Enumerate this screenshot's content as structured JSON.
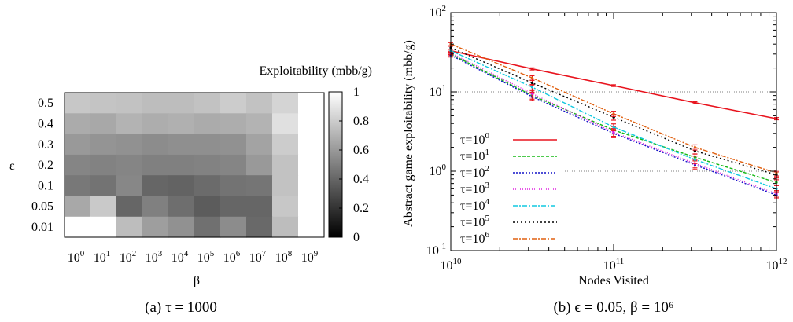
{
  "chart_data": [
    {
      "type": "heatmap",
      "caption": "(a) τ = 1000",
      "xlabel": "β",
      "ylabel": "ε",
      "colorbar_label": "Exploitability (mbb/g)",
      "colorbar_ticks": [
        "0",
        "0.2",
        "0.4",
        "0.6",
        "0.8",
        "1"
      ],
      "colormap": "gray",
      "zlim": [
        0,
        1
      ],
      "x_base": "10",
      "x_exponents": [
        "0",
        "1",
        "2",
        "3",
        "4",
        "5",
        "6",
        "7",
        "8",
        "9"
      ],
      "y_categories": [
        "0.5",
        "0.4",
        "0.3",
        "0.2",
        "0.1",
        "0.05",
        "0.01"
      ],
      "values": [
        [
          0.78,
          0.77,
          0.76,
          0.74,
          0.74,
          0.76,
          0.8,
          0.76,
          0.83,
          1.0
        ],
        [
          0.67,
          0.66,
          0.7,
          0.68,
          0.69,
          0.67,
          0.68,
          0.7,
          0.88,
          1.0
        ],
        [
          0.6,
          0.58,
          0.57,
          0.55,
          0.56,
          0.56,
          0.57,
          0.64,
          0.8,
          1.0
        ],
        [
          0.52,
          0.51,
          0.52,
          0.5,
          0.5,
          0.51,
          0.52,
          0.6,
          0.76,
          1.0
        ],
        [
          0.47,
          0.45,
          0.53,
          0.4,
          0.39,
          0.42,
          0.45,
          0.46,
          0.76,
          1.0
        ],
        [
          0.66,
          0.79,
          0.4,
          0.5,
          0.43,
          0.36,
          0.4,
          0.4,
          0.78,
          1.0
        ],
        [
          1.0,
          1.0,
          0.74,
          0.62,
          0.57,
          0.44,
          0.55,
          0.41,
          0.74,
          1.0
        ]
      ]
    },
    {
      "type": "line",
      "caption": "(b) ϵ = 0.05, β = 10⁶",
      "xlabel": "Nodes Visited",
      "ylabel": "Abstract game exploitability (mbb/g)",
      "xscale": "log",
      "yscale": "log",
      "xlim": [
        10000000000.0,
        1000000000000.0
      ],
      "ylim": [
        0.1,
        100
      ],
      "x_ticks": [
        {
          "base": "10",
          "exp": "10",
          "value": 10000000000.0
        },
        {
          "base": "10",
          "exp": "11",
          "value": 100000000000.0
        },
        {
          "base": "10",
          "exp": "12",
          "value": 1000000000000.0
        }
      ],
      "y_ticks": [
        {
          "base": "10",
          "exp": "-1",
          "value": 0.1
        },
        {
          "base": "10",
          "exp": "0",
          "value": 1
        },
        {
          "base": "10",
          "exp": "1",
          "value": 10
        },
        {
          "base": "10",
          "exp": "2",
          "value": 100
        }
      ],
      "legend_position": "bottom-left",
      "x": [
        10000000000.0,
        31600000000.0,
        100000000000.0,
        316000000000.0,
        1000000000000.0
      ],
      "series": [
        {
          "name_prefix": "τ=10",
          "name_exp": "0",
          "color": "#e8141e",
          "dash": "",
          "values": [
            33,
            19.5,
            12,
            7.3,
            4.6
          ],
          "err": [
            1.5,
            0.6,
            0.3,
            0.2,
            0.15
          ]
        },
        {
          "name_prefix": "τ=10",
          "name_exp": "1",
          "color": "#14b814",
          "dash": "4,2",
          "values": [
            30,
            9,
            3.3,
            1.5,
            0.72
          ],
          "err": [
            1.5,
            0.9,
            0.35,
            0.15,
            0.06
          ]
        },
        {
          "name_prefix": "τ=10",
          "name_exp": "2",
          "color": "#1414c8",
          "dash": "2,2",
          "values": [
            29,
            8.7,
            3.0,
            1.2,
            0.5
          ],
          "err": [
            1.5,
            0.9,
            0.35,
            0.15,
            0.05
          ]
        },
        {
          "name_prefix": "τ=10",
          "name_exp": "3",
          "color": "#e020e0",
          "dash": "1,2",
          "values": [
            31,
            9.5,
            3.1,
            1.25,
            0.52
          ],
          "err": [
            1.5,
            0.9,
            0.35,
            0.15,
            0.05
          ]
        },
        {
          "name_prefix": "τ=10",
          "name_exp": "4",
          "color": "#10c8e0",
          "dash": "6,2,2,2",
          "values": [
            33,
            11.5,
            3.6,
            1.4,
            0.6
          ],
          "err": [
            1.5,
            0.9,
            0.35,
            0.15,
            0.06
          ]
        },
        {
          "name_prefix": "τ=10",
          "name_exp": "5",
          "color": "#000000",
          "dash": "2,3",
          "values": [
            36,
            13,
            4.8,
            1.8,
            0.9
          ],
          "err": [
            1.6,
            1.0,
            0.4,
            0.15,
            0.08
          ]
        },
        {
          "name_prefix": "τ=10",
          "name_exp": "6",
          "color": "#e06010",
          "dash": "6,2,2,2",
          "values": [
            40,
            15,
            5.3,
            2.0,
            0.95
          ],
          "err": [
            1.8,
            1.0,
            0.4,
            0.15,
            0.08
          ]
        }
      ]
    }
  ]
}
